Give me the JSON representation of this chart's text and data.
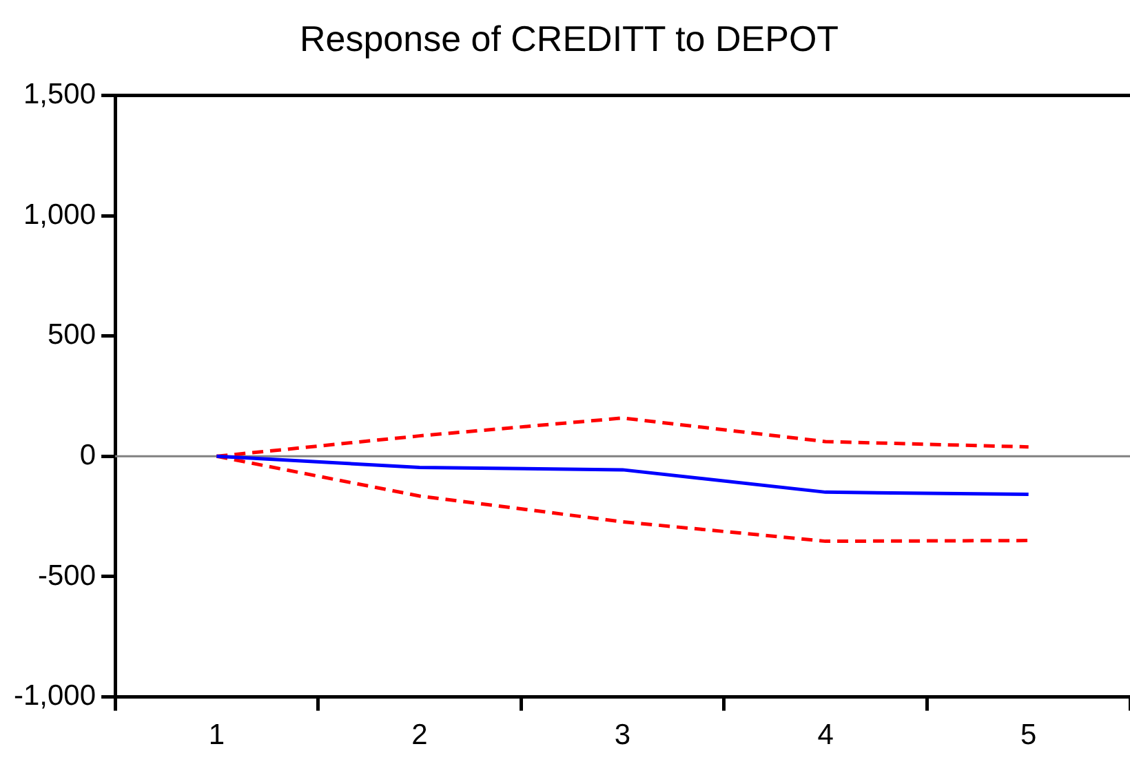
{
  "chart_data": {
    "type": "line",
    "title": "Response of CREDITT to DEPOT",
    "categories": [
      "1",
      "2",
      "3",
      "4",
      "5"
    ],
    "series": [
      {
        "color": "#0000ff",
        "values": [
          0,
          -46,
          -56,
          -149,
          -158
        ],
        "line_style": "solid"
      },
      {
        "color": "#ff0000",
        "values": [
          0,
          85,
          159,
          61,
          39
        ],
        "line_style": "dashed"
      },
      {
        "color": "#ff0000",
        "values": [
          0,
          -165,
          -272,
          -353,
          -350
        ],
        "line_style": "dashed"
      }
    ],
    "ylim": [
      -1000,
      1500
    ],
    "yticks": [
      {
        "value": -1000,
        "label": "-1,000"
      },
      -500,
      0,
      500,
      {
        "value": 1000,
        "label": "1,000"
      },
      {
        "value": 1500,
        "label": "1,500"
      }
    ],
    "ref_lines": [
      {
        "axis": "y",
        "value": 0,
        "color": "#808080"
      }
    ],
    "grid": false,
    "legend": false,
    "marker": "none"
  }
}
